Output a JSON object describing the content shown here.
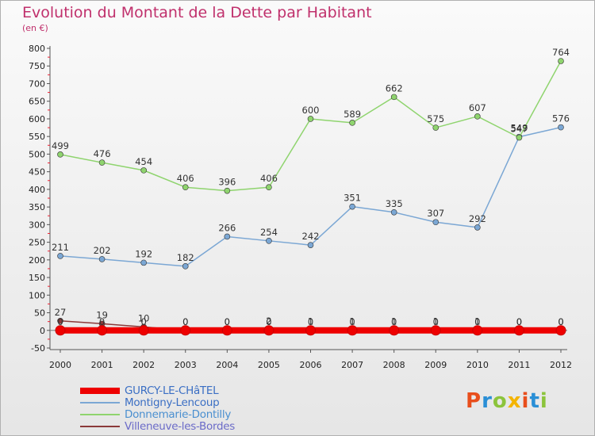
{
  "title": "Evolution du Montant de la Dette par Habitant",
  "subtitle": "(en €)",
  "logo": {
    "text": "Proxiti",
    "colors": [
      "#e84e1c",
      "#2a8fd6",
      "#8cc43c",
      "#f4b400"
    ]
  },
  "colors": {
    "title": "#c0306c",
    "axis": "#555555"
  },
  "chart_data": {
    "type": "line",
    "x": [
      "2000",
      "2001",
      "2002",
      "2003",
      "2004",
      "2005",
      "2006",
      "2007",
      "2008",
      "2009",
      "2010",
      "2011",
      "2012"
    ],
    "ylim": [
      -50,
      800
    ],
    "yticks": [
      -50,
      0,
      50,
      100,
      150,
      200,
      250,
      300,
      350,
      400,
      450,
      500,
      550,
      600,
      650,
      700,
      750,
      800
    ],
    "grid": false,
    "legend": "bottom-left",
    "series": [
      {
        "name": "GURCY-LE-CHâTEL",
        "color": "#ee0000",
        "values": [
          0,
          0,
          0,
          0,
          0,
          0,
          0,
          0,
          0,
          0,
          0,
          0,
          0
        ]
      },
      {
        "name": "Montigny-Lencoup",
        "color": "#7ba7d4",
        "values": [
          211,
          202,
          192,
          182,
          266,
          254,
          242,
          351,
          335,
          307,
          292,
          549,
          576
        ]
      },
      {
        "name": "Donnemarie-Dontilly",
        "color": "#8fd46e",
        "values": [
          499,
          476,
          454,
          406,
          396,
          406,
          600,
          589,
          662,
          575,
          607,
          547,
          764
        ]
      },
      {
        "name": "Villeneuve-les-Bordes",
        "color": "#8b3a3a",
        "values": [
          27,
          19,
          10,
          0,
          0,
          2,
          1,
          1,
          1,
          1,
          1,
          0,
          0
        ]
      }
    ]
  }
}
